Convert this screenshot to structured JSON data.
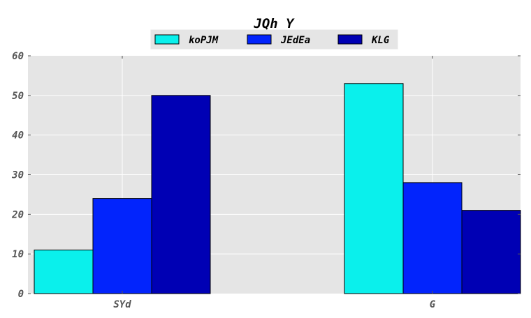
{
  "chart_data": {
    "type": "bar",
    "title": "JQh Y",
    "categories": [
      "SYd",
      "G"
    ],
    "series": [
      {
        "name": "koPJM",
        "values": [
          11,
          53
        ],
        "color": "#0af0ec"
      },
      {
        "name": "JEdEa",
        "values": [
          24,
          28
        ],
        "color": "#0224fc"
      },
      {
        "name": "KLG",
        "values": [
          50,
          21
        ],
        "color": "#0000b4"
      }
    ],
    "ylim": [
      0,
      60
    ],
    "yticks": [
      0,
      10,
      20,
      30,
      40,
      50,
      60
    ],
    "grid": true,
    "legend": "top-center",
    "colors": {
      "plot_background": "#e5e5e5",
      "grid": "#ffffff",
      "bar_edge": "#000000"
    }
  }
}
